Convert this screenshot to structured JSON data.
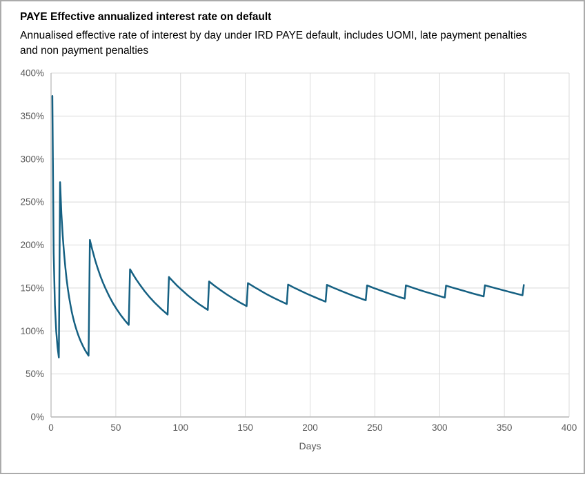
{
  "window": {
    "background": "#ffffff",
    "frame_border_color": "#ababab"
  },
  "colors": {
    "line": "#156082",
    "gridline": "#d9d9d9",
    "axis_line": "#bfbfbf",
    "tick_text": "#595959",
    "title_text": "#000000"
  },
  "chart_data": {
    "type": "line",
    "title": "PAYE Effective annualized interest rate on default",
    "subtitle_lines": [
      "Annualised effective rate of interest by day under IRD PAYE default, includes UOMI, late payment penalties",
      "and non payment penalties"
    ],
    "xlabel": "Days",
    "ylabel": "",
    "xlim": [
      0,
      400
    ],
    "ylim": [
      0,
      400
    ],
    "grid": true,
    "legend_position": "none",
    "xticks": [
      0,
      50,
      100,
      150,
      200,
      250,
      300,
      350,
      400
    ],
    "xtick_labels": [
      "0",
      "50",
      "100",
      "150",
      "200",
      "250",
      "300",
      "350",
      "400"
    ],
    "ytick_values": [
      0,
      50,
      100,
      150,
      200,
      250,
      300,
      350,
      400
    ],
    "ytick_labels": [
      "0%",
      "50%",
      "100%",
      "150%",
      "200%",
      "250%",
      "300%",
      "350%",
      "400%"
    ],
    "y_unit": "percent",
    "series": [
      {
        "color": "#156082",
        "points": [
          [
            1,
            373.4
          ],
          [
            2,
            190.9
          ],
          [
            3,
            130.0
          ],
          [
            4,
            99.6
          ],
          [
            5,
            81.4
          ],
          [
            6,
            69.2
          ],
          [
            7,
            273.0
          ],
          [
            8,
            236.5
          ],
          [
            9,
            211.1
          ],
          [
            10,
            190.9
          ],
          [
            11,
            174.3
          ],
          [
            12,
            160.4
          ],
          [
            13,
            148.7
          ],
          [
            14,
            138.7
          ],
          [
            15,
            130.0
          ],
          [
            16,
            122.4
          ],
          [
            17,
            115.7
          ],
          [
            18,
            109.7
          ],
          [
            19,
            104.4
          ],
          [
            20,
            99.6
          ],
          [
            21,
            95.3
          ],
          [
            22,
            91.3
          ],
          [
            23,
            87.7
          ],
          [
            24,
            84.4
          ],
          [
            25,
            81.4
          ],
          [
            26,
            78.5
          ],
          [
            27,
            75.9
          ],
          [
            28,
            73.5
          ],
          [
            29,
            71.3
          ],
          [
            30,
            205.9
          ],
          [
            31,
            199.6
          ],
          [
            32,
            193.6
          ],
          [
            33,
            188.0
          ],
          [
            34,
            182.7
          ],
          [
            35,
            177.7
          ],
          [
            36,
            173.0
          ],
          [
            38,
            164.3
          ],
          [
            40,
            156.5
          ],
          [
            42,
            149.5
          ],
          [
            45,
            140.1
          ],
          [
            48,
            131.8
          ],
          [
            51,
            124.6
          ],
          [
            54,
            118.1
          ],
          [
            57,
            112.3
          ],
          [
            60,
            107.1
          ],
          [
            61,
            171.8
          ],
          [
            62,
            169.2
          ],
          [
            64,
            164.1
          ],
          [
            66,
            159.4
          ],
          [
            68,
            155.0
          ],
          [
            72,
            146.8
          ],
          [
            76,
            139.5
          ],
          [
            80,
            133.0
          ],
          [
            85,
            125.7
          ],
          [
            90,
            119.1
          ],
          [
            91,
            162.8
          ],
          [
            92,
            161.1
          ],
          [
            95,
            156.3
          ],
          [
            97,
            153.2
          ],
          [
            100,
            148.9
          ],
          [
            105,
            142.2
          ],
          [
            110,
            136.1
          ],
          [
            115,
            130.5
          ],
          [
            121,
            124.5
          ],
          [
            122,
            157.6
          ],
          [
            126,
            152.8
          ],
          [
            131,
            147.3
          ],
          [
            136,
            142.2
          ],
          [
            141,
            137.5
          ],
          [
            146,
            133.0
          ],
          [
            151,
            128.9
          ],
          [
            152,
            155.7
          ],
          [
            157,
            151.0
          ],
          [
            162,
            146.6
          ],
          [
            167,
            142.4
          ],
          [
            172,
            138.5
          ],
          [
            177,
            134.9
          ],
          [
            182,
            131.4
          ],
          [
            183,
            154.0
          ],
          [
            188,
            150.1
          ],
          [
            193,
            146.5
          ],
          [
            198,
            143.0
          ],
          [
            203,
            139.7
          ],
          [
            208,
            136.5
          ],
          [
            212,
            134.1
          ],
          [
            213,
            153.7
          ],
          [
            218,
            150.3
          ],
          [
            223,
            147.2
          ],
          [
            228,
            144.1
          ],
          [
            233,
            141.2
          ],
          [
            238,
            138.4
          ],
          [
            243,
            135.7
          ],
          [
            244,
            153.0
          ],
          [
            249,
            150.1
          ],
          [
            254,
            147.3
          ],
          [
            259,
            144.6
          ],
          [
            264,
            142.0
          ],
          [
            269,
            139.5
          ],
          [
            273,
            137.6
          ],
          [
            274,
            153.1
          ],
          [
            279,
            150.5
          ],
          [
            284,
            148.0
          ],
          [
            289,
            145.6
          ],
          [
            294,
            143.3
          ],
          [
            299,
            141.0
          ],
          [
            304,
            138.8
          ],
          [
            305,
            152.8
          ],
          [
            310,
            150.5
          ],
          [
            315,
            148.3
          ],
          [
            320,
            146.1
          ],
          [
            325,
            143.9
          ],
          [
            330,
            141.9
          ],
          [
            334,
            140.3
          ],
          [
            335,
            153.2
          ],
          [
            340,
            151.0
          ],
          [
            345,
            149.0
          ],
          [
            350,
            147.0
          ],
          [
            355,
            145.0
          ],
          [
            360,
            143.1
          ],
          [
            364,
            141.6
          ],
          [
            365,
            153.5
          ]
        ]
      }
    ]
  }
}
